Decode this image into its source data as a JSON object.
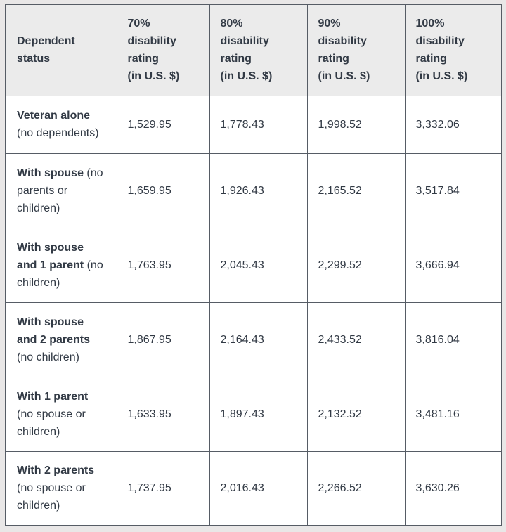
{
  "table": {
    "title": "VA disability compensation rates table",
    "columns": [
      {
        "label": "Dependent status"
      },
      {
        "percent": "70%",
        "rest": "disability rating",
        "unit": "(in U.S. $)"
      },
      {
        "percent": "80%",
        "rest": "disability rating",
        "unit": "(in U.S. $)"
      },
      {
        "percent": "90%",
        "rest": "disability rating",
        "unit": "(in U.S. $)"
      },
      {
        "percent": "100%",
        "rest": "disability rating",
        "unit": "(in U.S. $)"
      }
    ],
    "rows": [
      {
        "label_bold": "Veteran alone",
        "label_rest": "(no dependents)",
        "values": [
          "1,529.95",
          "1,778.43",
          "1,998.52",
          "3,332.06"
        ]
      },
      {
        "label_bold": "With spouse",
        "label_rest": "(no parents or children)",
        "values": [
          "1,659.95",
          "1,926.43",
          "2,165.52",
          "3,517.84"
        ]
      },
      {
        "label_bold": "With spouse and 1 parent",
        "label_rest": "(no children)",
        "values": [
          "1,763.95",
          "2,045.43",
          "2,299.52",
          "3,666.94"
        ]
      },
      {
        "label_bold": "With spouse and 2 parents",
        "label_rest": "(no children)",
        "values": [
          "1,867.95",
          "2,164.43",
          "2,433.52",
          "3,816.04"
        ]
      },
      {
        "label_bold": "With 1 parent",
        "label_rest": "(no spouse or children)",
        "values": [
          "1,633.95",
          "1,897.43",
          "2,132.52",
          "3,481.16"
        ]
      },
      {
        "label_bold": "With 2 parents",
        "label_rest": "(no spouse or children)",
        "values": [
          "1,737.95",
          "2,016.43",
          "2,266.52",
          "3,630.26"
        ]
      }
    ],
    "colors": {
      "header_bg": "#ebebeb",
      "cell_bg": "#ffffff",
      "border": "#565c65",
      "text": "#323a45"
    }
  },
  "chart_data": {
    "type": "table",
    "title": "Disability compensation rates (in U.S. $)",
    "categories": [
      "Veteran alone (no dependents)",
      "With spouse (no parents or children)",
      "With spouse and 1 parent (no children)",
      "With spouse and 2 parents (no children)",
      "With 1 parent (no spouse or children)",
      "With 2 parents (no spouse or children)"
    ],
    "series": [
      {
        "name": "70% disability rating (in U.S. $)",
        "values": [
          1529.95,
          1659.95,
          1763.95,
          1867.95,
          1633.95,
          1737.95
        ]
      },
      {
        "name": "80% disability rating (in U.S. $)",
        "values": [
          1778.43,
          1926.43,
          2045.43,
          2164.43,
          1897.43,
          2016.43
        ]
      },
      {
        "name": "90% disability rating (in U.S. $)",
        "values": [
          1998.52,
          2165.52,
          2299.52,
          2433.52,
          2132.52,
          2266.52
        ]
      },
      {
        "name": "100% disability rating (in U.S. $)",
        "values": [
          3332.06,
          3517.84,
          3666.94,
          3816.04,
          3481.16,
          3630.26
        ]
      }
    ]
  }
}
